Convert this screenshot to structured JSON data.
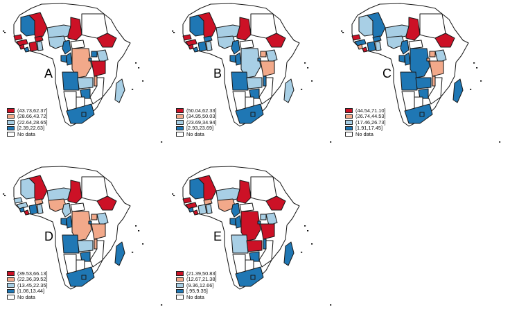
{
  "colors": {
    "q1": "#cc1126",
    "q2": "#f2a98a",
    "q3": "#a8cfe5",
    "q4": "#1f77b4",
    "nodata": "#ffffff"
  },
  "panels": [
    {
      "letter": "A",
      "legend": [
        "(43.73,62.37]",
        "(28.66,43.72]",
        "(22.64,28.65]",
        "[2.39,22.63]",
        "No data"
      ],
      "fills": {
        "mauritania": "q4",
        "mali": "q1",
        "niger": "q3",
        "chad": "q1",
        "sudan": "",
        "ethiopia": "q1",
        "senegal": "q1",
        "guinea": "q1",
        "sierra": "q1",
        "liberia": "q4",
        "ivory": "q1",
        "burkina": "q1",
        "ghana": "q3",
        "nigeria": "q3",
        "cameroon": "q4",
        "car": "",
        "congo": "q4",
        "drc": "q2",
        "uganda": "q4",
        "kenya": "q3",
        "tanzania": "q1",
        "angola": "q4",
        "zambia": "q3",
        "malawi": "q2",
        "mozambique": "",
        "zimbabwe": "q4",
        "namibia": "",
        "botswana": "",
        "southafrica": "q4",
        "lesotho": "q4",
        "madagascar": "q3",
        "gabon": "q4",
        "rwanda": "q4"
      }
    },
    {
      "letter": "B",
      "legend": [
        "(50.04,62.33]",
        "(34.95,50.03]",
        "(23.69,34.94]",
        "[2.93,23.69]",
        "No data"
      ],
      "fills": {
        "mauritania": "q4",
        "mali": "q1",
        "niger": "q3",
        "chad": "q1",
        "sudan": "",
        "ethiopia": "q1",
        "senegal": "q1",
        "guinea": "q1",
        "sierra": "q1",
        "liberia": "q4",
        "ivory": "q4",
        "burkina": "q4",
        "ghana": "q3",
        "nigeria": "q3",
        "cameroon": "q4",
        "car": "",
        "congo": "q4",
        "drc": "q3",
        "uganda": "q2",
        "kenya": "q3",
        "tanzania": "q2",
        "angola": "q4",
        "zambia": "q3",
        "malawi": "q4",
        "mozambique": "",
        "zimbabwe": "q4",
        "namibia": "",
        "botswana": "",
        "southafrica": "q4",
        "lesotho": "q4",
        "madagascar": "q3",
        "gabon": "q4",
        "rwanda": "q4"
      }
    },
    {
      "letter": "C",
      "legend": [
        "(44.54,71.10]",
        "(26.74,44.53]",
        "(17.46,26.73]",
        "[1.91,17.45]",
        "No data"
      ],
      "fills": {
        "mauritania": "q3",
        "mali": "q4",
        "niger": "q3",
        "chad": "q1",
        "sudan": "",
        "ethiopia": "q1",
        "senegal": "q1",
        "guinea": "q4",
        "sierra": "q2",
        "liberia": "q1",
        "ivory": "q4",
        "burkina": "q4",
        "ghana": "q3",
        "nigeria": "q3",
        "cameroon": "q4",
        "car": "",
        "congo": "q4",
        "drc": "q4",
        "uganda": "q2",
        "kenya": "q3",
        "tanzania": "q2",
        "angola": "q4",
        "zambia": "q4",
        "malawi": "q2",
        "mozambique": "",
        "zimbabwe": "q4",
        "namibia": "",
        "botswana": "",
        "southafrica": "q4",
        "lesotho": "q4",
        "madagascar": "q4",
        "gabon": "q4",
        "rwanda": "q2"
      }
    },
    {
      "letter": "D",
      "legend": [
        "(39.53,66.13]",
        "(22.36,39.52]",
        "(13.45,22.35]",
        "[1.06,13.44]",
        "No data"
      ],
      "fills": {
        "mauritania": "q3",
        "mali": "q1",
        "niger": "q3",
        "chad": "q1",
        "sudan": "",
        "ethiopia": "q1",
        "senegal": "q3",
        "guinea": "q3",
        "sierra": "q4",
        "liberia": "q1",
        "ivory": "q4",
        "burkina": "q2",
        "ghana": "q3",
        "nigeria": "q2",
        "cameroon": "q3",
        "car": "",
        "congo": "q4",
        "drc": "q2",
        "uganda": "q2",
        "kenya": "q3",
        "tanzania": "q2",
        "angola": "q4",
        "zambia": "q3",
        "malawi": "q2",
        "mozambique": "",
        "zimbabwe": "q4",
        "namibia": "",
        "botswana": "",
        "southafrica": "q4",
        "lesotho": "q4",
        "madagascar": "q4",
        "gabon": "q4",
        "rwanda": "q4"
      }
    },
    {
      "letter": "E",
      "legend": [
        "(21.39,50.83]",
        "(12.67,21.38]",
        "(9.36,12.66]",
        "[.95,9.35]",
        "No data"
      ],
      "fills": {
        "mauritania": "q4",
        "mali": "q1",
        "niger": "q3",
        "chad": "q1",
        "sudan": "",
        "ethiopia": "q1",
        "senegal": "q1",
        "guinea": "q1",
        "sierra": "q4",
        "liberia": "q1",
        "ivory": "q3",
        "burkina": "q2",
        "ghana": "q3",
        "nigeria": "q2",
        "cameroon": "q4",
        "car": "",
        "congo": "q4",
        "drc": "q1",
        "uganda": "q3",
        "kenya": "q3",
        "tanzania": "q1",
        "angola": "q3",
        "zambia": "q1",
        "malawi": "q4",
        "mozambique": "",
        "zimbabwe": "q4",
        "namibia": "",
        "botswana": "",
        "southafrica": "q4",
        "lesotho": "q4",
        "madagascar": "q4",
        "gabon": "q4",
        "rwanda": "q4"
      }
    }
  ]
}
